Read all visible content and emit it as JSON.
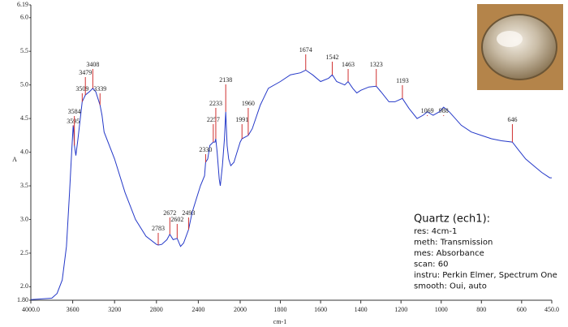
{
  "chart_data": {
    "type": "line",
    "y_label": "A",
    "x_label": "cm-1",
    "xlim": [
      4000,
      450
    ],
    "xscale_break": 2000,
    "ylim": [
      1.8,
      6.19
    ],
    "xticks": [
      {
        "value": 4000,
        "label": "4000.0"
      },
      3600,
      3200,
      2800,
      2400,
      2000,
      1800,
      1600,
      1400,
      1200,
      1000,
      800,
      600,
      {
        "value": 450,
        "label": "450.0"
      }
    ],
    "yticks": [
      {
        "value": 1.8,
        "label": "1.80"
      },
      {
        "value": 2,
        "label": "2.0"
      },
      2.5,
      {
        "value": 3,
        "label": "3.0"
      },
      3.5,
      {
        "value": 4,
        "label": "4.0"
      },
      4.5,
      {
        "value": 5,
        "label": "5.0"
      },
      5.5,
      {
        "value": 6,
        "label": "6.0"
      },
      6.19
    ],
    "series": [
      {
        "color": "#2438c8",
        "x": [
          4000,
          3800,
          3750,
          3700,
          3660,
          3630,
          3610,
          3595,
          3590,
          3584,
          3570,
          3550,
          3520,
          3509,
          3479,
          3440,
          3408,
          3380,
          3339,
          3320,
          3300,
          3200,
          3100,
          3000,
          2900,
          2800,
          2783,
          2750,
          2700,
          2672,
          2640,
          2602,
          2570,
          2540,
          2493,
          2460,
          2420,
          2380,
          2340,
          2330,
          2310,
          2290,
          2257,
          2240,
          2233,
          2220,
          2200,
          2190,
          2170,
          2150,
          2138,
          2125,
          2110,
          2090,
          2060,
          2030,
          2000,
          1991,
          1960,
          1940,
          1900,
          1860,
          1800,
          1750,
          1700,
          1674,
          1640,
          1600,
          1560,
          1542,
          1520,
          1480,
          1463,
          1440,
          1420,
          1400,
          1360,
          1323,
          1300,
          1260,
          1230,
          1193,
          1160,
          1120,
          1090,
          1069,
          1040,
          1010,
          988,
          960,
          900,
          850,
          800,
          750,
          700,
          646,
          620,
          580,
          540,
          500,
          460,
          450
        ],
        "values": [
          1.81,
          1.83,
          1.9,
          2.1,
          2.6,
          3.4,
          4.0,
          4.4,
          4.3,
          4.1,
          3.95,
          4.2,
          4.6,
          4.75,
          4.85,
          4.9,
          4.95,
          4.9,
          4.7,
          4.55,
          4.3,
          3.9,
          3.4,
          3.0,
          2.75,
          2.63,
          2.62,
          2.63,
          2.7,
          2.78,
          2.7,
          2.72,
          2.6,
          2.65,
          2.85,
          3.1,
          3.3,
          3.5,
          3.65,
          3.85,
          3.9,
          4.1,
          4.15,
          4.15,
          4.2,
          4.0,
          3.6,
          3.5,
          3.8,
          4.2,
          4.6,
          4.1,
          3.9,
          3.8,
          3.85,
          4.0,
          4.15,
          4.2,
          4.25,
          4.35,
          4.7,
          4.95,
          5.05,
          5.15,
          5.18,
          5.22,
          5.15,
          5.05,
          5.1,
          5.15,
          5.05,
          5.0,
          5.05,
          4.95,
          4.88,
          4.92,
          4.97,
          4.98,
          4.9,
          4.75,
          4.75,
          4.8,
          4.65,
          4.5,
          4.55,
          4.6,
          4.55,
          4.6,
          4.67,
          4.6,
          4.4,
          4.3,
          4.25,
          4.2,
          4.17,
          4.15,
          4.05,
          3.9,
          3.8,
          3.7,
          3.62,
          3.62
        ]
      }
    ],
    "peak_color": "#d03030",
    "peaks": [
      3595,
      3584,
      3509,
      3479,
      3408,
      3339,
      2783,
      2672,
      2602,
      2493,
      2330,
      2257,
      2233,
      2138,
      1991,
      1960,
      1674,
      1542,
      1463,
      1323,
      1193,
      1069,
      988,
      646
    ],
    "info": {
      "title": "Quartz (ech1):",
      "lines": [
        "res: 4cm-1",
        "meth: Transmission",
        "mes: Absorbance",
        "scan: 60",
        "instru: Perkin Elmer, Spectrum One",
        "smooth: Oui, auto"
      ]
    }
  }
}
